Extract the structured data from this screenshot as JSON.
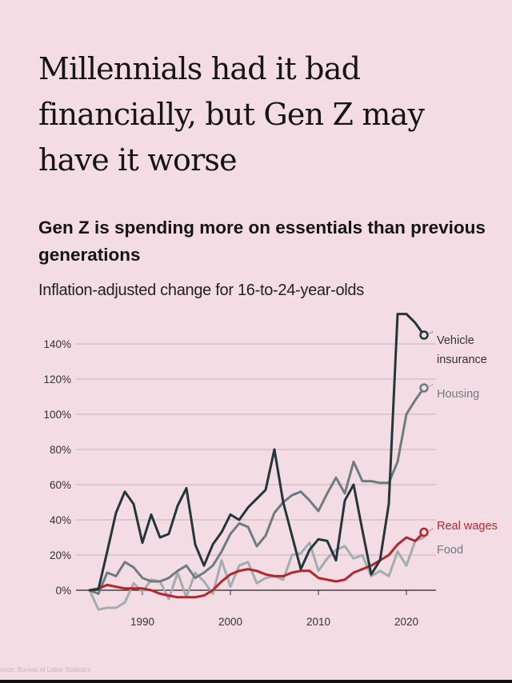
{
  "title": "Millennials had it bad financially, but Gen Z may have it worse",
  "subtitle": "Gen Z is spending more on essentials than previous generations",
  "caption": "Inflation-adjusted change for 16-to-24-year-olds",
  "source": "Source: Bureau of Labor Statistics",
  "chart_data": {
    "type": "line",
    "title": "Gen Z is spending more on essentials than previous generations",
    "subtitle": "Inflation-adjusted change for 16-to-24-year-olds",
    "xlabel": "",
    "ylabel": "",
    "xlim": [
      1984,
      2022
    ],
    "ylim": [
      -12,
      160
    ],
    "x_ticks": [
      "1990",
      "2000",
      "2010",
      "2020"
    ],
    "x_tick_values": [
      1990,
      2000,
      2010,
      2020
    ],
    "y_ticks": [
      "0%",
      "20%",
      "40%",
      "60%",
      "80%",
      "100%",
      "120%",
      "140%"
    ],
    "y_tick_values": [
      0,
      20,
      40,
      60,
      80,
      100,
      120,
      140
    ],
    "grid": true,
    "legend": "direct labels at line ends",
    "x": [
      1984,
      1985,
      1986,
      1987,
      1988,
      1989,
      1990,
      1991,
      1992,
      1993,
      1994,
      1995,
      1996,
      1997,
      1998,
      1999,
      2000,
      2001,
      2002,
      2003,
      2004,
      2005,
      2006,
      2007,
      2008,
      2009,
      2010,
      2011,
      2012,
      2013,
      2014,
      2015,
      2016,
      2017,
      2018,
      2019,
      2020,
      2021,
      2022
    ],
    "series": [
      {
        "name": "Vehicle insurance",
        "color": "#23363a",
        "values": [
          0,
          0.5,
          22,
          44,
          56,
          49,
          27,
          43,
          30,
          32,
          48,
          58,
          26,
          14,
          26,
          33,
          43,
          40,
          47,
          52,
          57,
          80,
          50,
          31,
          12,
          23,
          29,
          28,
          17,
          51,
          60,
          34,
          9,
          17,
          49,
          157,
          157,
          152,
          145
        ]
      },
      {
        "name": "Housing",
        "color": "#6e7c81",
        "values": [
          0,
          -2,
          10,
          8,
          16,
          13,
          7,
          5,
          5,
          7,
          11,
          14,
          7,
          10,
          14,
          22,
          32,
          38,
          36,
          25,
          31,
          44,
          50,
          54,
          56,
          51,
          45,
          55,
          64,
          55,
          73,
          62,
          62,
          61,
          61,
          73,
          100,
          108,
          115
        ]
      },
      {
        "name": "Real wages",
        "color": "#b3262b",
        "values": [
          0,
          1,
          3,
          2,
          1,
          1,
          1,
          0,
          -2,
          -3,
          -4,
          -4,
          -4,
          -3,
          0,
          5,
          9,
          11,
          12,
          11,
          9,
          8,
          8,
          10,
          11,
          11,
          7,
          6,
          5,
          6,
          10,
          12,
          14,
          17,
          20,
          26,
          30,
          28,
          33
        ]
      },
      {
        "name": "Food",
        "color": "#a2adb0",
        "values": [
          0,
          -11,
          -10,
          -10,
          -7,
          4,
          -1,
          6,
          5,
          -5,
          10,
          -4,
          10,
          5,
          -2,
          17,
          2,
          14,
          16,
          4,
          7,
          8,
          6,
          20,
          21,
          27,
          11,
          18,
          23,
          25,
          18,
          20,
          8,
          11,
          8,
          22,
          14,
          28,
          30
        ]
      }
    ]
  }
}
